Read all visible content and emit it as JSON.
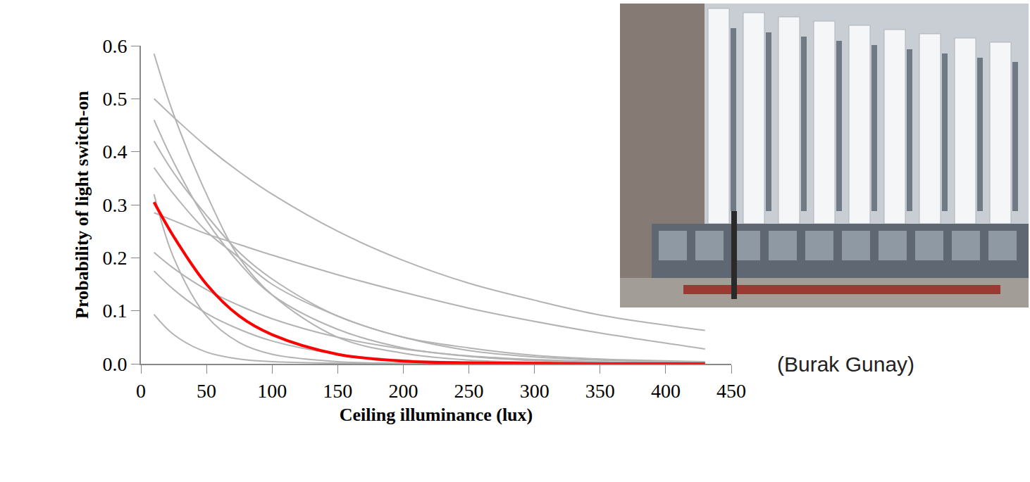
{
  "chart_data": {
    "type": "line",
    "x_label": "Ceiling illuminance (lux)",
    "y_label": "Probability of light switch-on",
    "annotations": [
      "(Burak Gunay)"
    ],
    "x": [
      10,
      25,
      50,
      75,
      100,
      150,
      200,
      250,
      300,
      350,
      430
    ],
    "series": [
      {
        "color": "#b3b3b3",
        "values": [
          0.585,
          0.47,
          0.32,
          0.2,
          0.13,
          0.05,
          0.02,
          0.007,
          0.003,
          0.001,
          0
        ]
      },
      {
        "color": "#b3b3b3",
        "values": [
          0.5,
          0.465,
          0.41,
          0.362,
          0.32,
          0.25,
          0.195,
          0.152,
          0.12,
          0.092,
          0.063
        ]
      },
      {
        "color": "#b3b3b3",
        "values": [
          0.46,
          0.38,
          0.27,
          0.19,
          0.13,
          0.065,
          0.03,
          0.014,
          0.006,
          0.003,
          0.001
        ]
      },
      {
        "color": "#b3b3b3",
        "values": [
          0.42,
          0.36,
          0.28,
          0.21,
          0.16,
          0.09,
          0.05,
          0.025,
          0.013,
          0.007,
          0.002
        ]
      },
      {
        "color": "#b3b3b3",
        "values": [
          0.37,
          0.32,
          0.25,
          0.2,
          0.15,
          0.09,
          0.05,
          0.03,
          0.016,
          0.009,
          0.004
        ]
      },
      {
        "color": "#b3b3b3",
        "values": [
          0.32,
          0.2,
          0.09,
          0.04,
          0.018,
          0.004,
          0.001,
          0,
          0,
          0,
          0
        ]
      },
      {
        "color": "#b3b3b3",
        "values": [
          0.285,
          0.27,
          0.245,
          0.225,
          0.205,
          0.168,
          0.135,
          0.105,
          0.08,
          0.058,
          0.028
        ]
      },
      {
        "color": "#b3b3b3",
        "values": [
          0.21,
          0.18,
          0.14,
          0.11,
          0.085,
          0.05,
          0.028,
          0.015,
          0.008,
          0.004,
          0.001
        ]
      },
      {
        "color": "#b3b3b3",
        "values": [
          0.175,
          0.14,
          0.095,
          0.065,
          0.043,
          0.018,
          0.007,
          0.003,
          0.001,
          0,
          0
        ]
      },
      {
        "color": "#b3b3b3",
        "values": [
          0.093,
          0.055,
          0.022,
          0.009,
          0.004,
          0.001,
          0,
          0,
          0,
          0,
          0
        ]
      },
      {
        "color": "#ff0000",
        "values": [
          0.305,
          0.24,
          0.15,
          0.09,
          0.055,
          0.018,
          0.005,
          0.002,
          0.001,
          0,
          0
        ]
      }
    ],
    "xlim": [
      0,
      450
    ],
    "xticks": [
      0,
      50,
      100,
      150,
      200,
      250,
      300,
      350,
      400,
      450
    ],
    "ylim": [
      0,
      0.6
    ],
    "yticks": [
      {
        "value": 0,
        "label": "0.0"
      },
      0.1,
      0.2,
      0.3,
      0.4,
      0.5,
      0.6
    ],
    "grid": false
  }
}
